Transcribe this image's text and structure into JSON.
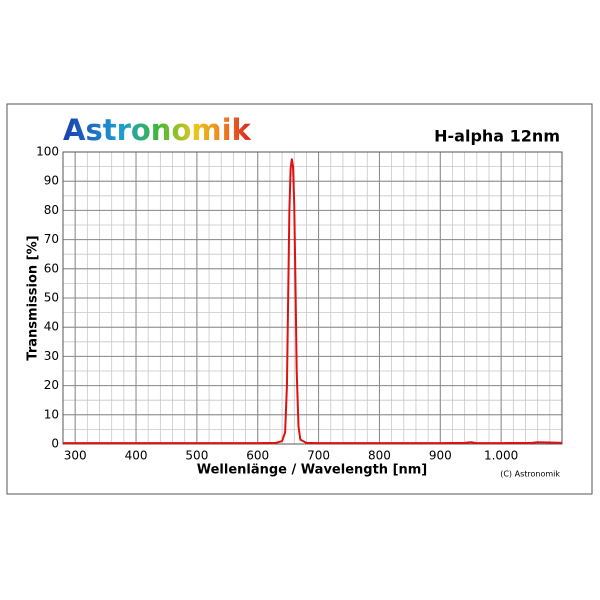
{
  "chart_data": {
    "type": "line",
    "logo": "Astronomik",
    "title": "H-alpha 12nm",
    "x_label": "Wellenlänge / Wavelength [nm]",
    "y_label": "Transmission [%]",
    "copyright": "(C) Astronomik",
    "x": [
      280,
      600,
      630,
      640,
      645,
      648,
      650,
      652,
      654,
      656,
      658,
      660,
      662,
      664,
      667,
      670,
      680,
      700,
      800,
      900,
      940,
      950,
      960,
      1000,
      1050,
      1060,
      1080,
      1100
    ],
    "series": [
      {
        "name": "H-alpha 12nm",
        "color": "#e01010",
        "values": [
          0.3,
          0.3,
          0.4,
          1,
          4,
          20,
          50,
          80,
          94,
          97.5,
          95,
          82,
          55,
          25,
          6,
          1.5,
          0.4,
          0.3,
          0.3,
          0.3,
          0.4,
          0.6,
          0.3,
          0.3,
          0.4,
          0.6,
          0.5,
          0.4
        ]
      }
    ],
    "xlim": [
      280,
      1100
    ],
    "xticks": [
      300,
      400,
      500,
      600,
      700,
      800,
      900,
      {
        "value": 1000,
        "label": "1.000"
      }
    ],
    "ylim": [
      0,
      100
    ],
    "yticks": [
      0,
      10,
      20,
      30,
      40,
      50,
      60,
      70,
      80,
      90,
      100
    ],
    "grid": true
  }
}
